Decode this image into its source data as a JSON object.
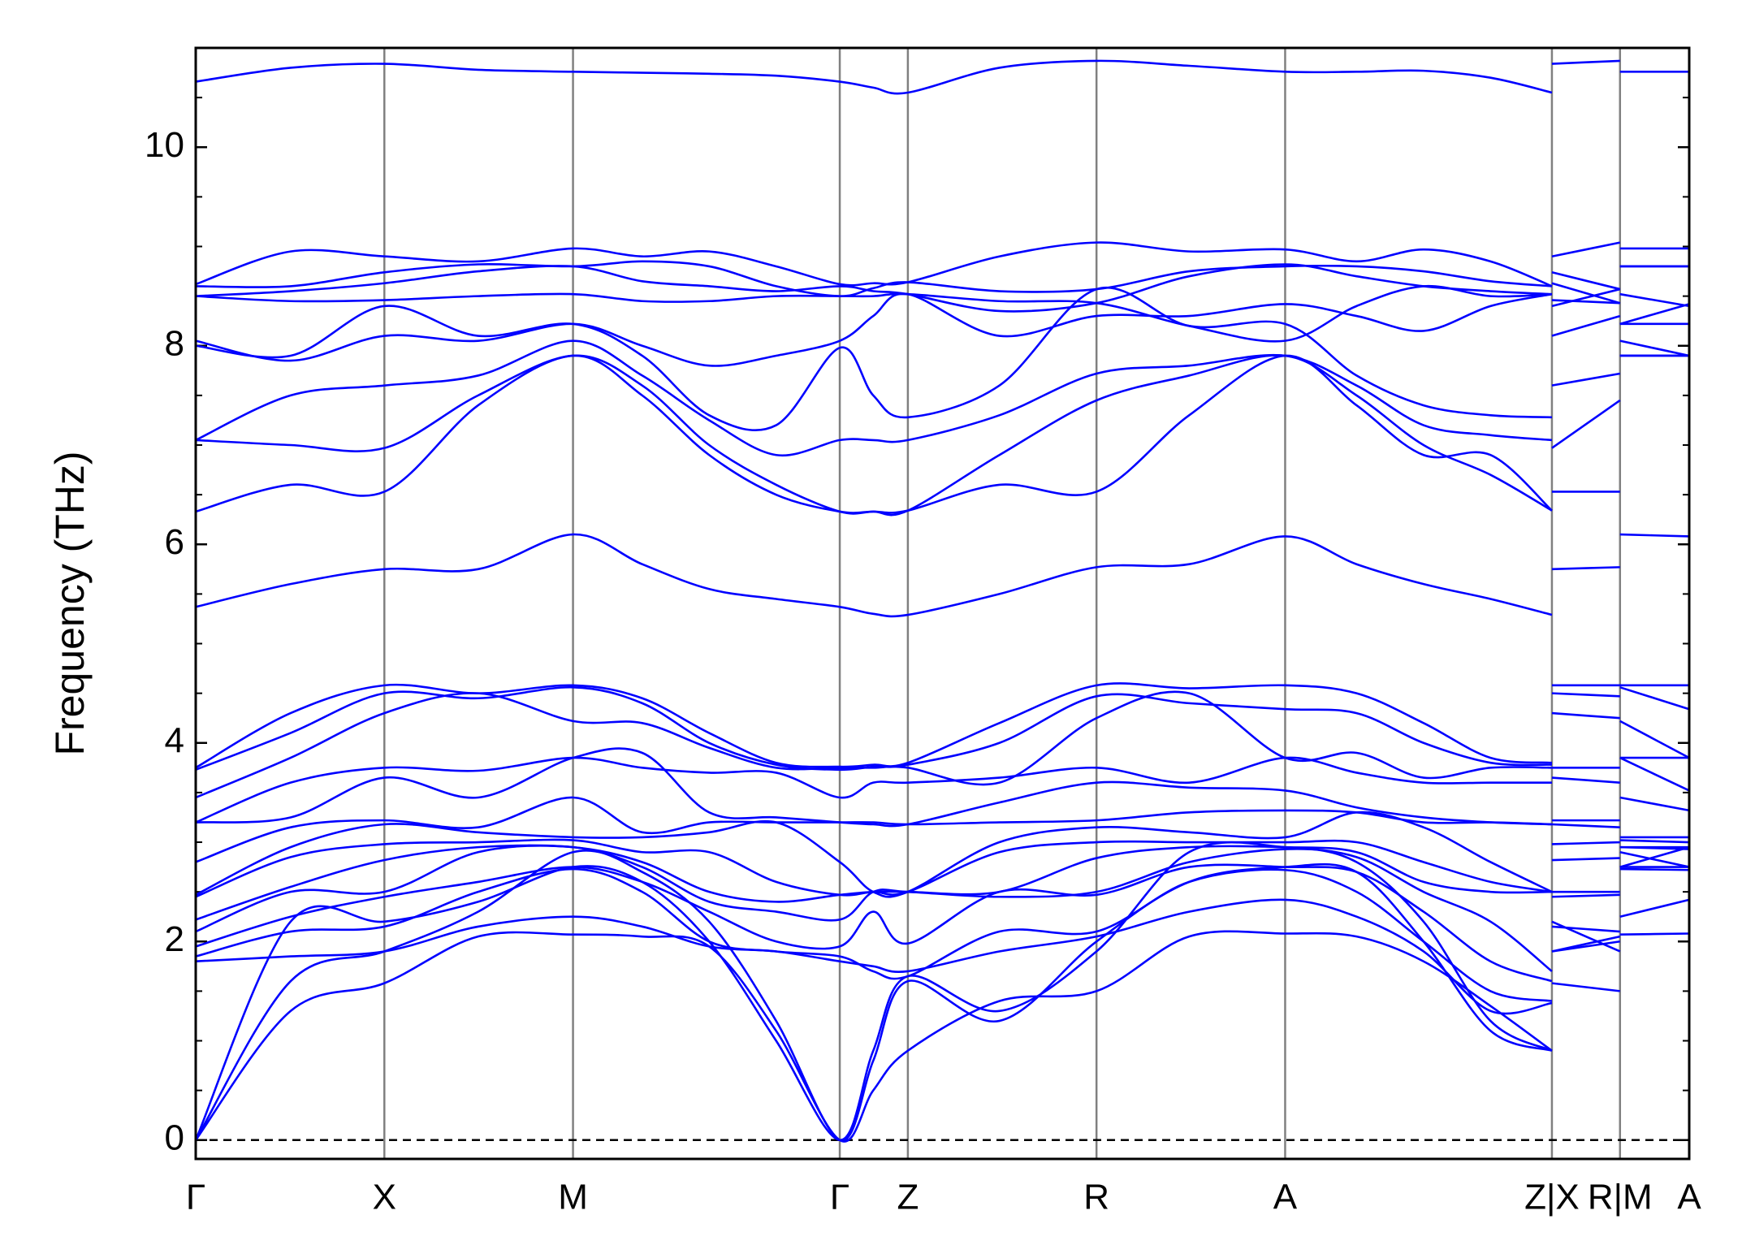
{
  "chart_data": {
    "type": "line",
    "ylabel": "Frequency (THz)",
    "line_color": "#0000ff",
    "x": [
      0,
      0.85,
      1.69,
      2.53,
      3.38,
      4.0,
      4.6,
      5.2,
      5.77,
      6.07,
      6.38,
      7.2,
      8.07,
      8.9,
      9.76,
      10.4,
      11.0,
      11.6,
      12.15,
      12.15,
      12.15,
      12.76,
      12.76,
      12.76,
      13.38
    ],
    "xlim": [
      0,
      13.38
    ],
    "xticks": [
      {
        "value": 0,
        "label": "Γ"
      },
      {
        "value": 1.69,
        "label": "X"
      },
      {
        "value": 3.38,
        "label": "M"
      },
      {
        "value": 5.77,
        "label": "Γ"
      },
      {
        "value": 6.38,
        "label": "Z"
      },
      {
        "value": 8.07,
        "label": "R"
      },
      {
        "value": 9.76,
        "label": "A"
      },
      {
        "value": 12.15,
        "label": "Z|X"
      },
      {
        "value": 12.76,
        "label": "R|M"
      },
      {
        "value": 13.38,
        "label": "A"
      }
    ],
    "ylim": [
      -0.19,
      11.0
    ],
    "yticks": [
      0,
      2,
      4,
      6,
      8,
      10
    ],
    "yminorticks": [
      0.5,
      1,
      1.5,
      2.5,
      3,
      3.5,
      4.5,
      5,
      5.5,
      6.5,
      7,
      7.5,
      8.5,
      9,
      9.5,
      10.5
    ],
    "reference_line": 0,
    "series": [
      {
        "values": [
          10.66,
          10.8,
          10.84,
          10.78,
          10.76,
          10.75,
          10.74,
          10.72,
          10.66,
          10.6,
          10.55,
          10.8,
          10.87,
          10.82,
          10.76,
          10.76,
          10.77,
          10.7,
          10.55,
          null,
          10.84,
          10.87,
          null,
          10.76,
          10.76
        ]
      },
      {
        "values": [
          8.62,
          8.95,
          8.9,
          8.85,
          8.98,
          8.9,
          8.95,
          8.8,
          8.62,
          8.63,
          8.64,
          8.9,
          9.04,
          8.95,
          8.97,
          8.85,
          8.97,
          8.85,
          8.6,
          null,
          8.9,
          9.04,
          null,
          8.98,
          8.98
        ]
      },
      {
        "values": [
          8.6,
          8.6,
          8.74,
          8.82,
          8.8,
          8.85,
          8.8,
          8.6,
          8.5,
          8.58,
          8.64,
          8.55,
          8.57,
          8.75,
          8.8,
          8.8,
          8.75,
          8.65,
          8.6,
          null,
          8.74,
          8.57,
          null,
          8.8,
          8.8
        ]
      },
      {
        "values": [
          8.5,
          8.55,
          8.63,
          8.75,
          8.8,
          8.65,
          8.6,
          8.55,
          8.6,
          8.55,
          8.52,
          8.35,
          8.43,
          8.7,
          8.82,
          8.7,
          8.6,
          8.55,
          8.52,
          null,
          8.63,
          8.43,
          null,
          8.8,
          8.8
        ]
      },
      {
        "values": [
          8.5,
          8.45,
          8.46,
          8.5,
          8.52,
          8.45,
          8.45,
          8.5,
          8.5,
          8.5,
          8.52,
          8.45,
          8.43,
          8.2,
          8.05,
          8.4,
          8.6,
          8.5,
          8.52,
          null,
          8.46,
          8.43,
          null,
          8.52,
          8.4
        ]
      },
      {
        "values": [
          8.05,
          7.85,
          8.1,
          8.05,
          8.22,
          8.0,
          7.8,
          7.9,
          8.05,
          8.3,
          8.52,
          8.1,
          8.3,
          8.3,
          8.42,
          8.3,
          8.15,
          8.4,
          8.52,
          null,
          8.1,
          8.3,
          null,
          8.22,
          8.42
        ]
      },
      {
        "values": [
          8.0,
          7.9,
          8.4,
          8.1,
          8.22,
          7.9,
          7.3,
          7.2,
          7.98,
          7.5,
          7.28,
          7.6,
          8.57,
          8.2,
          8.22,
          7.7,
          7.4,
          7.3,
          7.28,
          null,
          8.4,
          8.57,
          null,
          8.22,
          8.22
        ]
      },
      {
        "values": [
          7.05,
          7.5,
          7.6,
          7.7,
          8.05,
          7.7,
          7.25,
          6.9,
          7.05,
          7.05,
          7.05,
          7.3,
          7.72,
          7.8,
          7.9,
          7.6,
          7.2,
          7.1,
          7.05,
          null,
          7.6,
          7.72,
          null,
          8.05,
          7.9
        ]
      },
      {
        "values": [
          7.05,
          7.0,
          6.97,
          7.5,
          7.9,
          7.6,
          7.0,
          6.6,
          6.33,
          6.33,
          6.34,
          6.9,
          7.45,
          7.7,
          7.9,
          7.5,
          7.0,
          6.7,
          6.34,
          null,
          6.97,
          7.45,
          null,
          7.9,
          7.9
        ]
      },
      {
        "values": [
          6.33,
          6.6,
          6.53,
          7.4,
          7.9,
          7.5,
          6.9,
          6.5,
          6.33,
          6.33,
          6.34,
          6.6,
          6.53,
          7.3,
          7.9,
          7.4,
          6.9,
          6.9,
          6.34,
          null,
          6.53,
          6.53,
          null,
          7.9,
          7.9
        ]
      },
      {
        "values": [
          5.37,
          5.6,
          5.75,
          5.75,
          6.1,
          5.8,
          5.55,
          5.45,
          5.37,
          5.3,
          5.29,
          5.5,
          5.77,
          5.8,
          6.08,
          5.8,
          5.6,
          5.45,
          5.29,
          null,
          5.75,
          5.77,
          null,
          6.1,
          6.08
        ]
      },
      {
        "values": [
          3.75,
          4.3,
          4.58,
          4.5,
          4.58,
          4.45,
          4.1,
          3.8,
          3.76,
          3.78,
          3.8,
          4.2,
          4.58,
          4.55,
          4.58,
          4.5,
          4.2,
          3.85,
          3.8,
          null,
          4.58,
          4.58,
          null,
          4.58,
          4.58
        ]
      },
      {
        "values": [
          3.73,
          4.1,
          4.5,
          4.45,
          4.56,
          4.4,
          4.0,
          3.78,
          3.73,
          3.76,
          3.78,
          4.0,
          4.47,
          4.4,
          4.34,
          4.3,
          4.0,
          3.8,
          3.78,
          null,
          4.5,
          4.47,
          null,
          4.56,
          4.34
        ]
      },
      {
        "values": [
          3.45,
          3.85,
          4.3,
          4.5,
          4.22,
          4.2,
          3.95,
          3.75,
          3.75,
          3.75,
          3.75,
          3.6,
          4.25,
          4.5,
          3.85,
          3.9,
          3.65,
          3.75,
          3.75,
          null,
          4.3,
          4.25,
          null,
          4.22,
          3.85
        ]
      },
      {
        "values": [
          3.2,
          3.6,
          3.75,
          3.72,
          3.85,
          3.75,
          3.7,
          3.7,
          3.45,
          3.6,
          3.6,
          3.65,
          3.75,
          3.6,
          3.85,
          3.7,
          3.6,
          3.6,
          3.6,
          null,
          3.75,
          3.75,
          null,
          3.85,
          3.85
        ]
      },
      {
        "values": [
          3.2,
          3.25,
          3.65,
          3.45,
          3.85,
          3.9,
          3.3,
          3.25,
          3.2,
          3.18,
          3.18,
          3.4,
          3.6,
          3.55,
          3.52,
          3.35,
          3.25,
          3.2,
          3.18,
          null,
          3.65,
          3.6,
          null,
          3.85,
          3.52
        ]
      },
      {
        "values": [
          2.8,
          3.15,
          3.22,
          3.15,
          3.45,
          3.1,
          3.2,
          3.2,
          3.2,
          3.2,
          3.18,
          3.2,
          3.22,
          3.3,
          3.32,
          3.3,
          3.2,
          3.2,
          3.18,
          null,
          3.22,
          3.22,
          null,
          3.45,
          3.32
        ]
      },
      {
        "values": [
          2.47,
          2.95,
          3.18,
          3.1,
          3.05,
          3.05,
          3.1,
          3.2,
          2.8,
          2.5,
          2.5,
          3.0,
          3.15,
          3.1,
          3.05,
          3.3,
          3.15,
          2.8,
          2.5,
          null,
          3.18,
          3.15,
          null,
          3.05,
          3.05
        ]
      },
      {
        "values": [
          2.45,
          2.85,
          2.98,
          3.0,
          3.02,
          2.9,
          2.9,
          2.6,
          2.47,
          2.5,
          2.5,
          2.9,
          3.0,
          3.0,
          3.0,
          3.0,
          2.8,
          2.6,
          2.5,
          null,
          2.98,
          3.0,
          null,
          3.02,
          3.0
        ]
      },
      {
        "values": [
          2.22,
          2.55,
          2.82,
          2.95,
          2.95,
          2.8,
          2.5,
          2.4,
          2.47,
          2.5,
          2.5,
          2.5,
          2.84,
          2.95,
          2.95,
          2.9,
          2.6,
          2.5,
          2.5,
          null,
          2.82,
          2.84,
          null,
          2.95,
          2.95
        ]
      },
      {
        "values": [
          2.1,
          2.5,
          2.5,
          2.9,
          2.95,
          2.75,
          2.4,
          2.3,
          2.22,
          2.5,
          2.5,
          2.45,
          2.5,
          2.8,
          2.93,
          2.85,
          2.5,
          2.2,
          1.7,
          null,
          2.5,
          2.5,
          null,
          2.95,
          2.93
        ]
      },
      {
        "values": [
          1.95,
          2.25,
          2.45,
          2.6,
          2.75,
          2.6,
          2.3,
          2.0,
          1.95,
          2.3,
          1.98,
          2.5,
          2.47,
          2.75,
          2.75,
          2.7,
          2.3,
          1.8,
          1.6,
          null,
          2.45,
          2.47,
          null,
          2.75,
          2.75
        ]
      },
      {
        "values": [
          1.85,
          2.1,
          2.15,
          2.5,
          2.73,
          2.5,
          2.0,
          1.9,
          1.85,
          1.7,
          1.65,
          2.1,
          2.1,
          2.6,
          2.72,
          2.5,
          2.0,
          1.5,
          1.4,
          null,
          2.15,
          2.1,
          null,
          2.73,
          2.72
        ]
      },
      {
        "values": [
          1.8,
          1.85,
          1.9,
          2.15,
          2.25,
          2.15,
          1.95,
          1.9,
          1.8,
          1.75,
          1.7,
          1.9,
          2.05,
          2.3,
          2.42,
          2.25,
          1.9,
          1.3,
          1.38,
          null,
          1.9,
          2.05,
          null,
          2.25,
          2.42
        ]
      },
      {
        "values": [
          0,
          2.2,
          2.2,
          2.4,
          2.75,
          2.6,
          2.0,
          1.0,
          0,
          0.9,
          1.65,
          1.3,
          1.9,
          2.9,
          2.95,
          2.8,
          2.2,
          1.2,
          0.9,
          null,
          2.2,
          1.9,
          null,
          2.75,
          2.95
        ]
      },
      {
        "values": [
          0,
          1.6,
          1.9,
          2.3,
          2.9,
          2.7,
          2.2,
          1.2,
          0,
          0.8,
          1.6,
          1.2,
          2.0,
          2.6,
          2.75,
          2.7,
          2.0,
          1.1,
          0.9,
          null,
          1.9,
          2.0,
          null,
          2.9,
          2.75
        ]
      },
      {
        "values": [
          0,
          1.3,
          1.58,
          2.05,
          2.07,
          2.05,
          1.95,
          1.1,
          0,
          0.5,
          0.9,
          1.4,
          1.5,
          2.05,
          2.08,
          2.05,
          1.8,
          1.35,
          0.9,
          null,
          1.58,
          1.5,
          null,
          2.07,
          2.08
        ]
      }
    ]
  }
}
